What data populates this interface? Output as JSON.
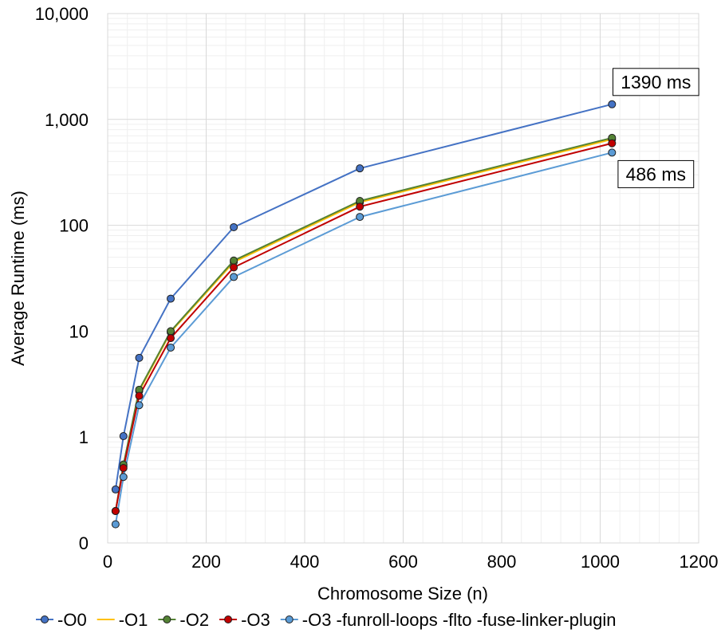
{
  "chart_data": {
    "type": "line",
    "title": "",
    "xlabel": "Chromosome Size (n)",
    "ylabel": "Average Runtime (ms)",
    "xlim": [
      0,
      1200
    ],
    "ylim": [
      0.1,
      10000
    ],
    "yscale": "log",
    "grid": true,
    "legend": "bottom",
    "x_ticks": [
      0,
      200,
      400,
      600,
      800,
      1000,
      1200
    ],
    "x_tick_labels": [
      "0",
      "200",
      "400",
      "600",
      "800",
      "1000",
      "1200"
    ],
    "y_ticks": [
      0.1,
      1,
      10,
      100,
      1000,
      10000
    ],
    "y_tick_labels": [
      "0",
      "1",
      "10",
      "100",
      "1,000",
      "10,000"
    ],
    "x": [
      16,
      32,
      64,
      128,
      256,
      512,
      1024
    ],
    "series": [
      {
        "name": "-O0",
        "color": "#4472c4",
        "values": [
          0.32,
          1.02,
          5.6,
          20.3,
          96,
          345,
          1390
        ]
      },
      {
        "name": "-O1",
        "color": "#ffc000",
        "values": [
          0.2,
          0.53,
          2.72,
          9.8,
          45,
          165,
          650
        ]
      },
      {
        "name": "-O2",
        "color": "#548235",
        "values": [
          0.2,
          0.55,
          2.8,
          10.0,
          46.5,
          170,
          670
        ]
      },
      {
        "name": "-O3",
        "color": "#c00000",
        "values": [
          0.2,
          0.51,
          2.45,
          8.6,
          40,
          150,
          595
        ]
      },
      {
        "name": "-O3 -funroll-loops -flto -fuse-linker-plugin",
        "color": "#5b9bd5",
        "values": [
          0.15,
          0.42,
          2.0,
          7.0,
          32.5,
          120,
          486
        ]
      }
    ],
    "annotations": [
      {
        "text": "1390 ms",
        "x": 1024,
        "y": 1390,
        "placement": "above"
      },
      {
        "text": "486 ms",
        "x": 1024,
        "y": 486,
        "placement": "below"
      }
    ]
  }
}
